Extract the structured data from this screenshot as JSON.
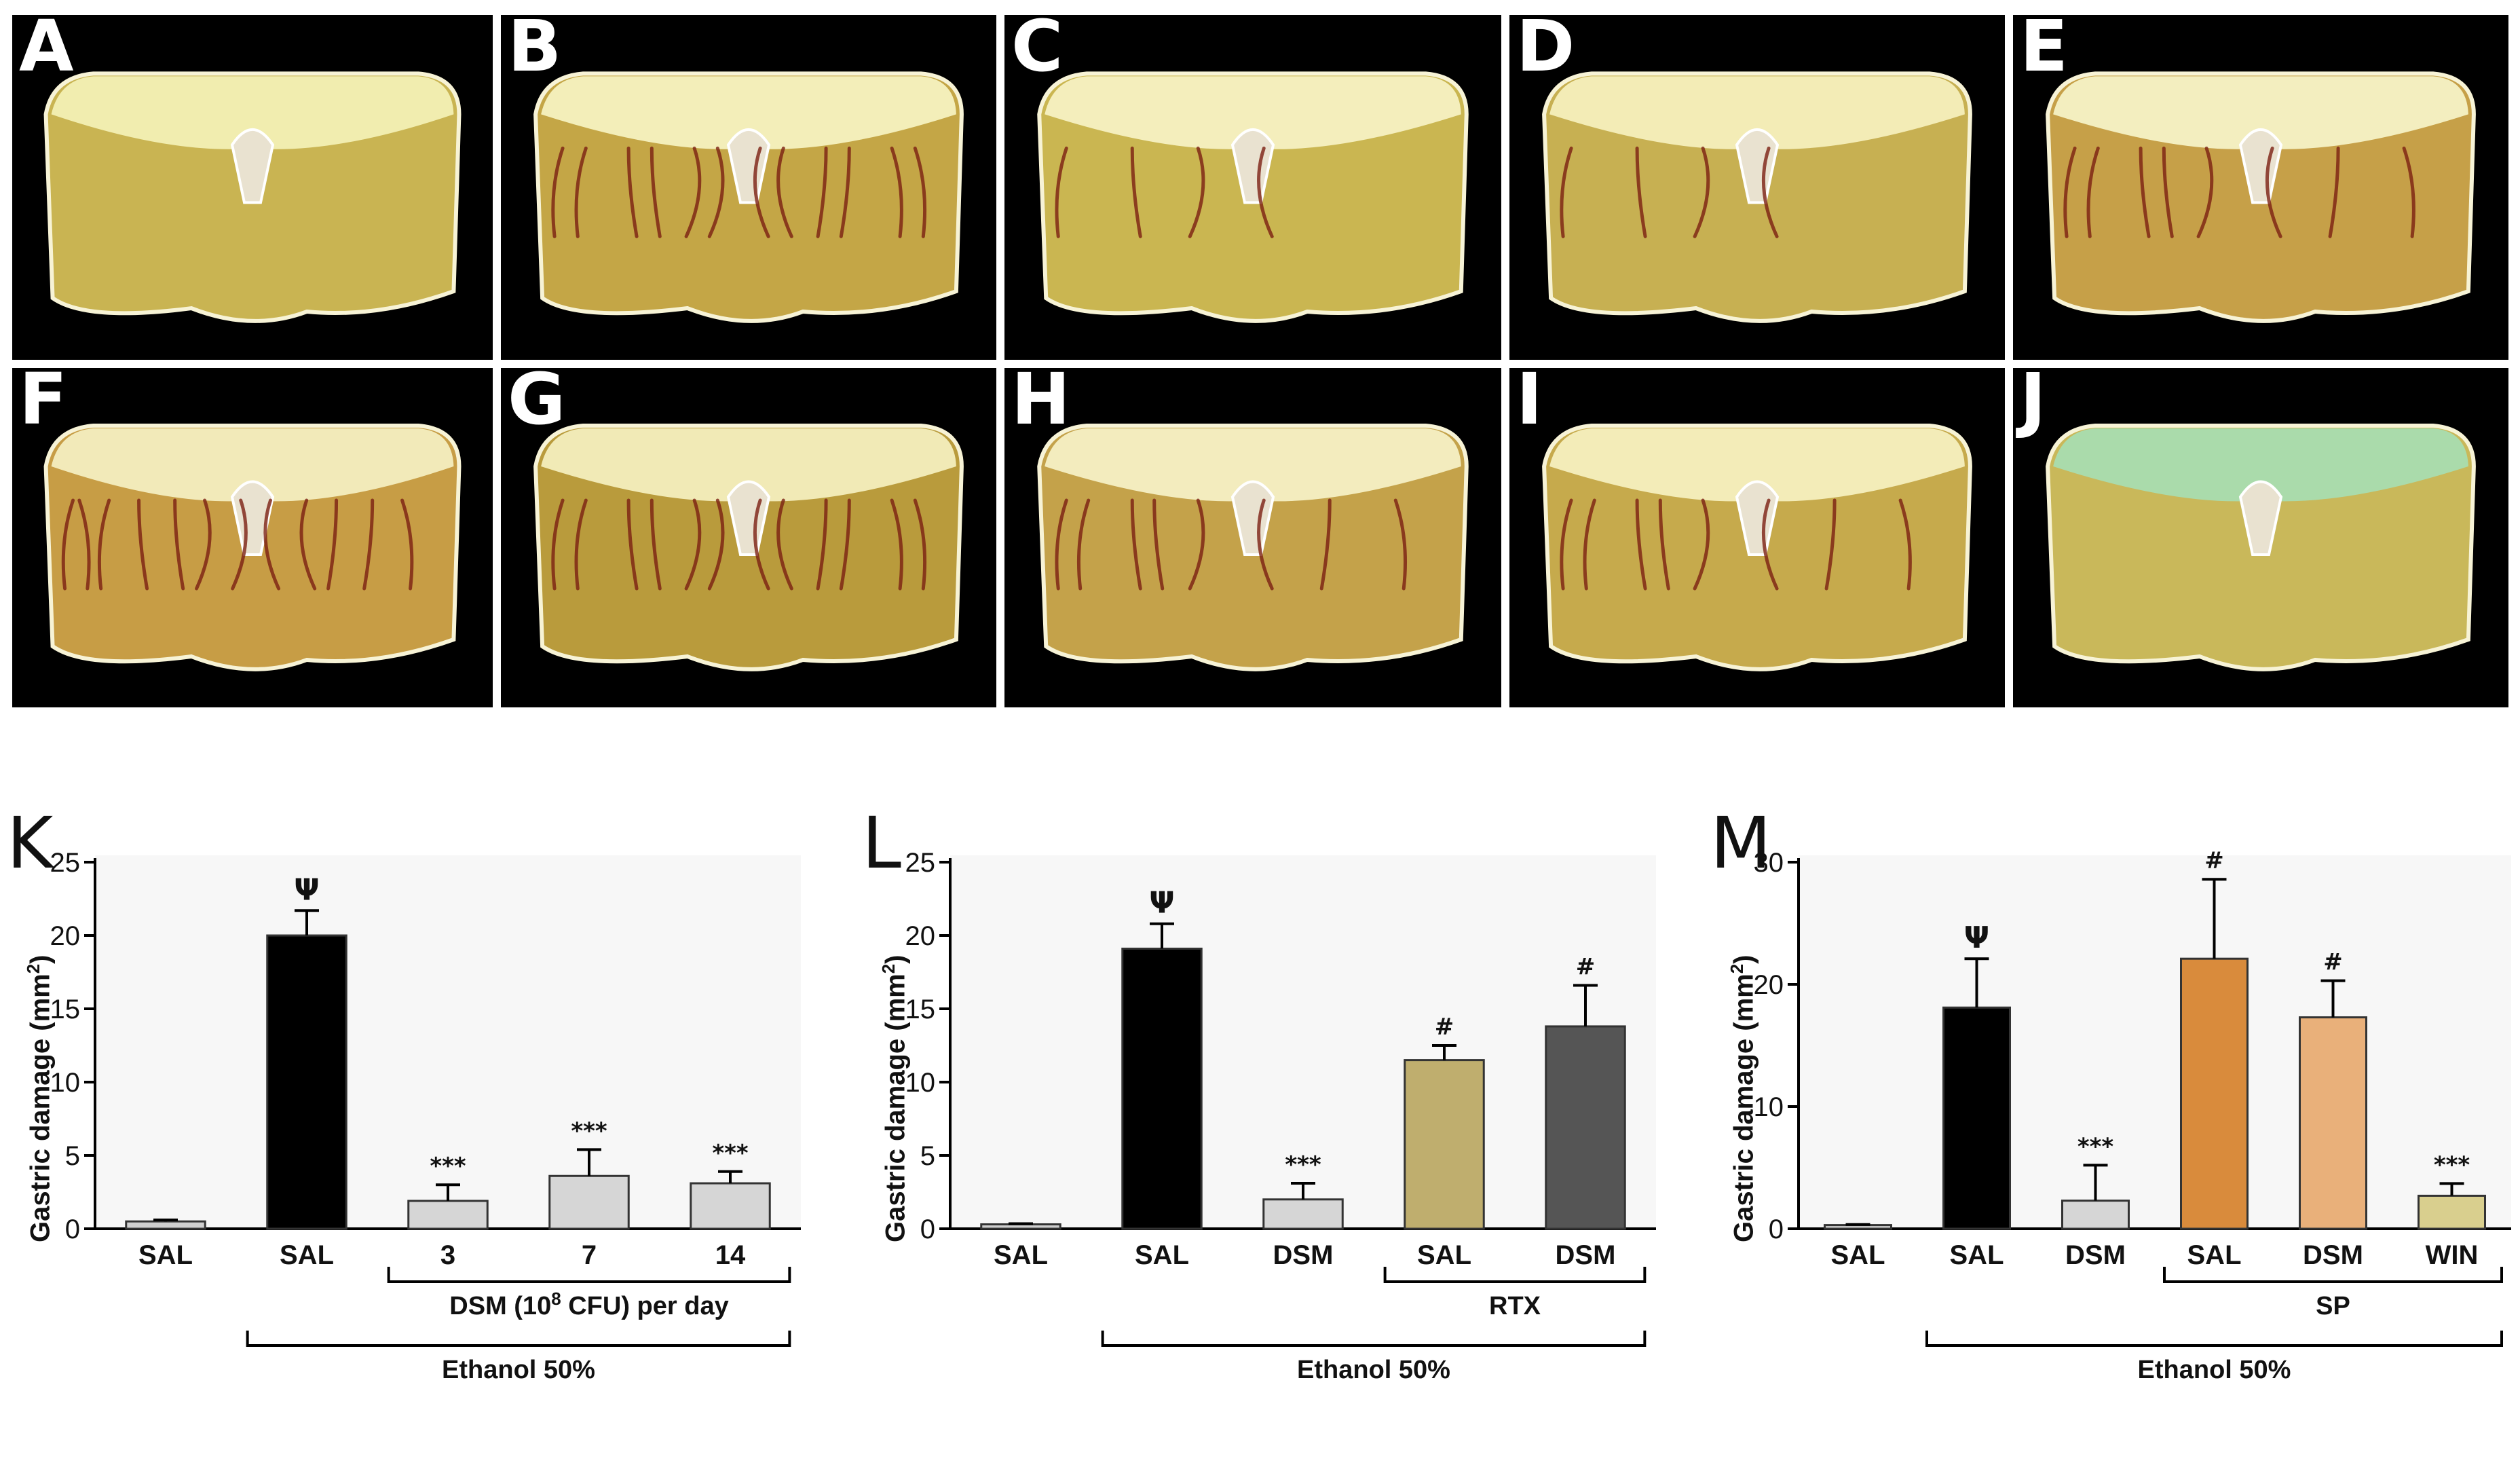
{
  "panels": [
    {
      "letter": "A",
      "bleed": 0,
      "top": "#f3f0b4",
      "body": "#c9b452"
    },
    {
      "letter": "B",
      "bleed": 3,
      "top": "#f6f1c0",
      "body": "#c4a646"
    },
    {
      "letter": "C",
      "bleed": 1,
      "top": "#f6f1c2",
      "body": "#cab651"
    },
    {
      "letter": "D",
      "bleed": 1,
      "top": "#f5efbc",
      "body": "#c7b052"
    },
    {
      "letter": "E",
      "bleed": 2,
      "top": "#f6f2c6",
      "body": "#c6a048"
    },
    {
      "letter": "F",
      "bleed": 3,
      "top": "#f4eec0",
      "body": "#c79d45"
    },
    {
      "letter": "G",
      "bleed": 3,
      "top": "#f3eebd",
      "body": "#b99b3c"
    },
    {
      "letter": "H",
      "bleed": 2,
      "top": "#f6f0c4",
      "body": "#c4a24a"
    },
    {
      "letter": "I",
      "bleed": 2,
      "top": "#f5efbe",
      "body": "#c6aa4c"
    },
    {
      "letter": "J",
      "bleed": 0,
      "top": "#a9dcb0",
      "body": "#c9b85a"
    }
  ],
  "chart_data": [
    {
      "letter": "K",
      "type": "bar",
      "ylabel_main": "Gastric damage (mm",
      "ylabel_sup": "2",
      "ylabel_end": ")",
      "ylim": [
        0,
        25
      ],
      "yticks": [
        "0",
        "5",
        "10",
        "15",
        "20",
        "25"
      ],
      "categories": [
        "SAL",
        "SAL",
        "3",
        "7",
        "14"
      ],
      "values": [
        0.5,
        20.0,
        1.9,
        3.6,
        3.1
      ],
      "errors": [
        0.1,
        1.7,
        1.1,
        1.8,
        0.8
      ],
      "colors": [
        "#cfcfcf",
        "#000000",
        "#d6d6d6",
        "#d6d6d6",
        "#d6d6d6"
      ],
      "annotations": [
        "",
        "Ψ",
        "***",
        "***",
        "***"
      ],
      "brackets": [
        {
          "label": "DSM (10",
          "sup": "8",
          "label_end": " CFU) per day",
          "from": 2,
          "to": 4,
          "level": 1
        },
        {
          "label": "Ethanol 50%",
          "from": 1,
          "to": 4,
          "level": 2
        }
      ]
    },
    {
      "letter": "L",
      "type": "bar",
      "ylabel_main": "Gastric damage (mm",
      "ylabel_sup": "2",
      "ylabel_end": ")",
      "ylim": [
        0,
        25
      ],
      "yticks": [
        "0",
        "5",
        "10",
        "15",
        "20",
        "25"
      ],
      "categories": [
        "SAL",
        "SAL",
        "DSM",
        "SAL",
        "DSM"
      ],
      "values": [
        0.3,
        19.1,
        2.0,
        11.5,
        13.8
      ],
      "errors": [
        0.05,
        1.7,
        1.1,
        1.0,
        2.8
      ],
      "colors": [
        "#cfcfcf",
        "#000000",
        "#d6d6d6",
        "#bfae6e",
        "#555555"
      ],
      "annotations": [
        "",
        "Ψ",
        "***",
        "#",
        "#"
      ],
      "brackets": [
        {
          "label": "RTX",
          "from": 3,
          "to": 4,
          "level": 1
        },
        {
          "label": "Ethanol 50%",
          "from": 1,
          "to": 4,
          "level": 2
        }
      ]
    },
    {
      "letter": "M",
      "type": "bar",
      "ylabel_main": "Gastric damage (mm",
      "ylabel_sup": "2",
      "ylabel_end": ")",
      "ylim": [
        0,
        30
      ],
      "yticks": [
        "0",
        "10",
        "20",
        "30"
      ],
      "categories": [
        "SAL",
        "SAL",
        "DSM",
        "SAL",
        "DSM",
        "WIN"
      ],
      "values": [
        0.3,
        18.1,
        2.3,
        22.1,
        17.3,
        2.7
      ],
      "errors": [
        0.05,
        4.0,
        2.9,
        6.5,
        3.0,
        1.0
      ],
      "colors": [
        "#cfcfcf",
        "#000000",
        "#d6d6d6",
        "#d98b3c",
        "#e9b07a",
        "#d9cf8e"
      ],
      "annotations": [
        "",
        "Ψ",
        "***",
        "#",
        "#",
        "***"
      ],
      "brackets": [
        {
          "label": "SP",
          "from": 3,
          "to": 5,
          "level": 1
        },
        {
          "label": "Ethanol 50%",
          "from": 1,
          "to": 5,
          "level": 2
        }
      ]
    }
  ]
}
